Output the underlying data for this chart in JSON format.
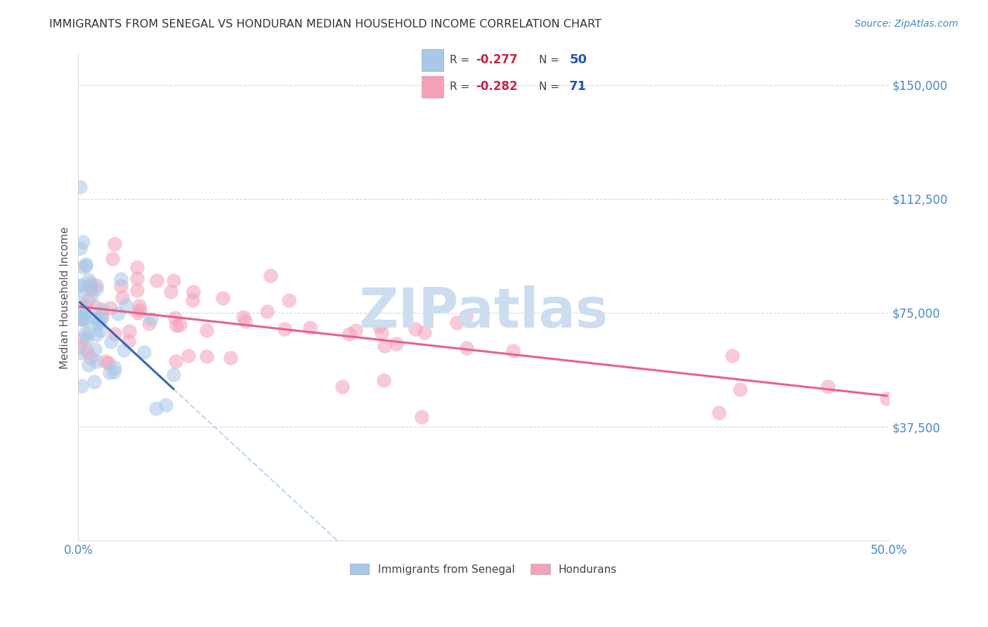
{
  "title": "IMMIGRANTS FROM SENEGAL VS HONDURAN MEDIAN HOUSEHOLD INCOME CORRELATION CHART",
  "source": "Source: ZipAtlas.com",
  "ylabel": "Median Household Income",
  "xlim": [
    0.0,
    0.5
  ],
  "ylim": [
    0,
    160000
  ],
  "yticks": [
    0,
    37500,
    75000,
    112500,
    150000
  ],
  "yticklabels": [
    "",
    "$37,500",
    "$75,000",
    "$112,500",
    "$150,000"
  ],
  "xtick_positions": [
    0.0,
    0.1,
    0.2,
    0.3,
    0.4,
    0.5
  ],
  "xticklabels": [
    "0.0%",
    "",
    "",
    "",
    "",
    "50.0%"
  ],
  "senegal_color": "#a8c8e8",
  "honduran_color": "#f4a0b8",
  "senegal_line_color": "#3366bb",
  "honduran_line_color": "#e8608a",
  "dashed_line_color": "#aaccee",
  "watermark": "ZIPatlas",
  "watermark_color": "#ccddf0",
  "background_color": "#ffffff",
  "grid_color": "#cccccc",
  "title_color": "#333333",
  "axis_label_color": "#555555",
  "tick_color": "#4488cc",
  "r_value_color": "#cc2244",
  "n_value_color": "#2255bb",
  "bottom_legend_label1": "Immigrants from Senegal",
  "bottom_legend_label2": "Hondurans",
  "legend_r1": "-0.277",
  "legend_n1": "50",
  "legend_r2": "-0.282",
  "legend_n2": "71"
}
